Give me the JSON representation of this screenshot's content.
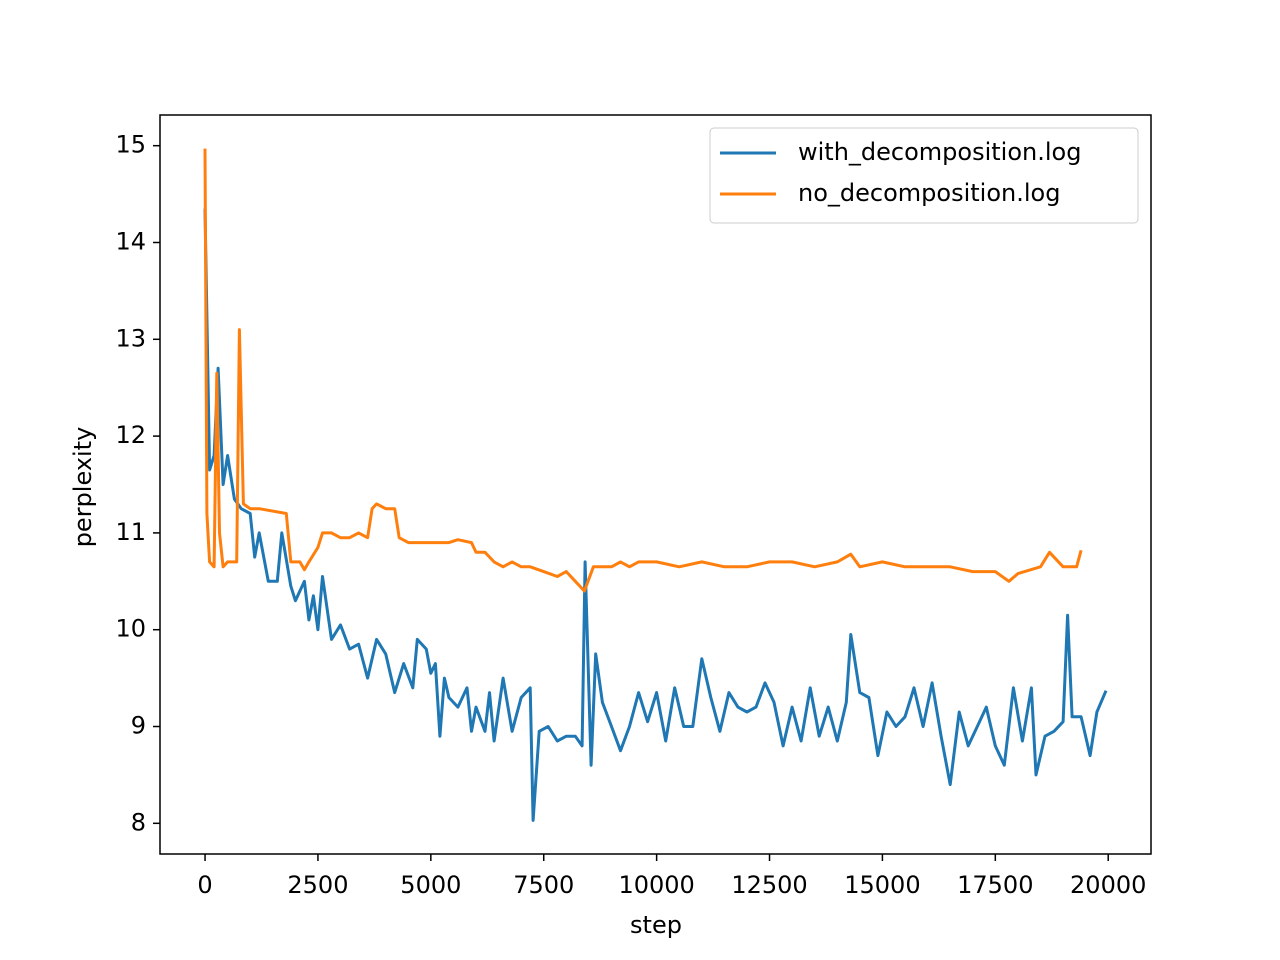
{
  "chart_data": {
    "type": "line",
    "xlabel": "step",
    "ylabel": "perplexity",
    "xlim": [
      -997.5,
      20947.5
    ],
    "ylim": [
      7.683,
      15.317
    ],
    "xticks": [
      0,
      2500,
      5000,
      7500,
      10000,
      12500,
      15000,
      17500,
      20000
    ],
    "yticks": [
      8,
      9,
      10,
      11,
      12,
      13,
      14,
      15
    ],
    "grid": false,
    "legend": "upper right",
    "series": [
      {
        "name": "with_decomposition.log",
        "color": "#1f77b4",
        "x": [
          0,
          100,
          200,
          290,
          400,
          500,
          650,
          800,
          1000,
          1100,
          1200,
          1400,
          1600,
          1700,
          1900,
          2000,
          2200,
          2300,
          2400,
          2500,
          2600,
          2800,
          3000,
          3200,
          3400,
          3600,
          3800,
          4000,
          4200,
          4400,
          4600,
          4700,
          4900,
          5000,
          5100,
          5200,
          5300,
          5400,
          5600,
          5800,
          5900,
          6000,
          6200,
          6300,
          6400,
          6600,
          6800,
          7000,
          7200,
          7265,
          7400,
          7600,
          7800,
          8000,
          8200,
          8350,
          8416,
          8550,
          8650,
          8800,
          9000,
          9200,
          9400,
          9600,
          9800,
          10000,
          10200,
          10400,
          10600,
          10800,
          11000,
          11200,
          11400,
          11600,
          11800,
          12000,
          12200,
          12400,
          12600,
          12800,
          13000,
          13200,
          13400,
          13600,
          13800,
          14000,
          14200,
          14300,
          14500,
          14700,
          14900,
          15100,
          15300,
          15500,
          15700,
          15900,
          16100,
          16300,
          16500,
          16700,
          16900,
          17100,
          17300,
          17500,
          17700,
          17900,
          18100,
          18300,
          18400,
          18600,
          18800,
          19000,
          19100,
          19200,
          19400,
          19500,
          19600,
          19750,
          19950
        ],
        "values": [
          14.35,
          11.65,
          11.8,
          12.7,
          11.5,
          11.8,
          11.35,
          11.25,
          11.2,
          10.75,
          11.0,
          10.5,
          10.5,
          11.0,
          10.45,
          10.3,
          10.5,
          10.1,
          10.35,
          10.0,
          10.55,
          9.9,
          10.05,
          9.8,
          9.85,
          9.5,
          9.9,
          9.75,
          9.35,
          9.65,
          9.4,
          9.9,
          9.8,
          9.55,
          9.65,
          8.9,
          9.5,
          9.3,
          9.2,
          9.4,
          8.95,
          9.2,
          8.95,
          9.35,
          8.85,
          9.5,
          8.95,
          9.3,
          9.4,
          8.03,
          8.95,
          9.0,
          8.85,
          8.9,
          8.9,
          8.8,
          10.7,
          8.6,
          9.75,
          9.25,
          9.0,
          8.75,
          9.0,
          9.35,
          9.05,
          9.35,
          8.85,
          9.4,
          9.0,
          9.0,
          9.7,
          9.3,
          8.95,
          9.35,
          9.2,
          9.15,
          9.2,
          9.45,
          9.25,
          8.8,
          9.2,
          8.85,
          9.4,
          8.9,
          9.2,
          8.85,
          9.25,
          9.95,
          9.35,
          9.3,
          8.7,
          9.15,
          9.0,
          9.1,
          9.4,
          9.0,
          9.45,
          8.9,
          8.4,
          9.15,
          8.8,
          9.0,
          9.2,
          8.8,
          8.6,
          9.4,
          8.85,
          9.4,
          8.5,
          8.9,
          8.95,
          9.05,
          10.15,
          9.1,
          9.1,
          8.9,
          8.7,
          9.15,
          9.37
        ]
      },
      {
        "name": "no_decomposition.log",
        "color": "#ff7f0e",
        "x": [
          0,
          40,
          100,
          200,
          260,
          320,
          400,
          500,
          700,
          760,
          850,
          1000,
          1200,
          1800,
          1900,
          2100,
          2200,
          2300,
          2500,
          2600,
          2800,
          3000,
          3200,
          3400,
          3600,
          3700,
          3800,
          4000,
          4200,
          4300,
          4500,
          4800,
          5000,
          5400,
          5600,
          5900,
          6000,
          6200,
          6400,
          6600,
          6800,
          7000,
          7200,
          7500,
          7800,
          8000,
          8200,
          8400,
          8600,
          8800,
          9000,
          9200,
          9400,
          9600,
          9800,
          10000,
          10500,
          11000,
          11500,
          12000,
          12500,
          13000,
          13500,
          14000,
          14300,
          14500,
          15000,
          15500,
          16000,
          16500,
          17000,
          17500,
          17800,
          18000,
          18500,
          18700,
          19000,
          19300,
          19400
        ],
        "values": [
          14.97,
          11.2,
          10.7,
          10.65,
          12.65,
          11.0,
          10.65,
          10.7,
          10.7,
          13.1,
          11.3,
          11.25,
          11.25,
          11.2,
          10.7,
          10.7,
          10.62,
          10.7,
          10.85,
          11.0,
          11.0,
          10.95,
          10.95,
          11.0,
          10.95,
          11.25,
          11.3,
          11.25,
          11.25,
          10.95,
          10.9,
          10.9,
          10.9,
          10.9,
          10.93,
          10.9,
          10.8,
          10.8,
          10.7,
          10.65,
          10.7,
          10.65,
          10.65,
          10.6,
          10.55,
          10.6,
          10.5,
          10.4,
          10.65,
          10.65,
          10.65,
          10.7,
          10.65,
          10.7,
          10.7,
          10.7,
          10.65,
          10.7,
          10.65,
          10.65,
          10.7,
          10.7,
          10.65,
          10.7,
          10.78,
          10.65,
          10.7,
          10.65,
          10.65,
          10.65,
          10.6,
          10.6,
          10.5,
          10.58,
          10.65,
          10.8,
          10.65,
          10.65,
          10.82
        ]
      }
    ]
  }
}
